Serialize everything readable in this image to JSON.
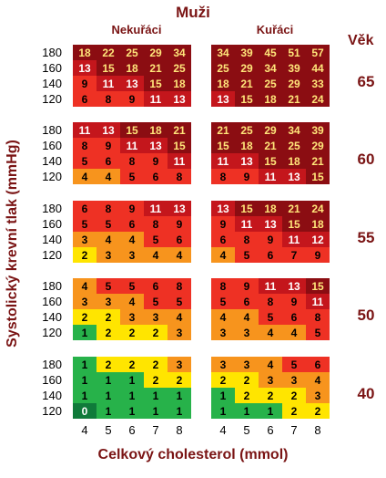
{
  "header": {
    "title": "Muži",
    "nonsmokers": "Nekuřáci",
    "smokers": "Kuřáci",
    "age_label": "Věk"
  },
  "axes": {
    "ylabel": "Systolický krevní tlak (mmHg)",
    "xlabel": "Celkový cholesterol (mmol)",
    "bp_ticks": [
      "180",
      "160",
      "140",
      "120"
    ],
    "chol_ticks": [
      "4",
      "5",
      "6",
      "7",
      "8"
    ]
  },
  "palette": [
    "#0f7a3a",
    "#27b24a",
    "#ffe500",
    "#f7941d",
    "#ee3124",
    "#c4161c",
    "#8b0d12"
  ],
  "panels": [
    {
      "age": "65",
      "nonsmokers": [
        [
          18,
          22,
          25,
          29,
          34
        ],
        [
          13,
          15,
          18,
          21,
          25
        ],
        [
          9,
          11,
          13,
          15,
          18
        ],
        [
          6,
          8,
          9,
          11,
          13
        ]
      ],
      "smokers": [
        [
          34,
          39,
          45,
          51,
          57
        ],
        [
          25,
          29,
          34,
          39,
          44
        ],
        [
          18,
          21,
          25,
          29,
          33
        ],
        [
          13,
          15,
          18,
          21,
          24
        ]
      ]
    },
    {
      "age": "60",
      "nonsmokers": [
        [
          11,
          13,
          15,
          18,
          21
        ],
        [
          8,
          9,
          11,
          13,
          15
        ],
        [
          5,
          6,
          8,
          9,
          11
        ],
        [
          4,
          4,
          5,
          6,
          8
        ]
      ],
      "smokers": [
        [
          21,
          25,
          29,
          34,
          39
        ],
        [
          15,
          18,
          21,
          25,
          29
        ],
        [
          11,
          13,
          15,
          18,
          21
        ],
        [
          8,
          9,
          11,
          13,
          15
        ]
      ]
    },
    {
      "age": "55",
      "nonsmokers": [
        [
          6,
          8,
          9,
          11,
          13
        ],
        [
          5,
          5,
          6,
          8,
          9
        ],
        [
          3,
          4,
          4,
          5,
          6
        ],
        [
          2,
          3,
          3,
          4,
          4
        ]
      ],
      "smokers": [
        [
          13,
          15,
          18,
          21,
          24
        ],
        [
          9,
          11,
          13,
          15,
          18
        ],
        [
          6,
          8,
          9,
          11,
          12
        ],
        [
          4,
          5,
          6,
          7,
          9
        ]
      ]
    },
    {
      "age": "50",
      "nonsmokers": [
        [
          4,
          5,
          5,
          6,
          8
        ],
        [
          3,
          3,
          4,
          5,
          5
        ],
        [
          2,
          2,
          3,
          3,
          4
        ],
        [
          1,
          2,
          2,
          2,
          3
        ]
      ],
      "smokers": [
        [
          8,
          9,
          11,
          13,
          15
        ],
        [
          5,
          6,
          8,
          9,
          11
        ],
        [
          4,
          4,
          5,
          6,
          8
        ],
        [
          3,
          3,
          4,
          4,
          5
        ]
      ]
    },
    {
      "age": "40",
      "nonsmokers": [
        [
          1,
          2,
          2,
          2,
          3
        ],
        [
          1,
          1,
          1,
          2,
          2
        ],
        [
          1,
          1,
          1,
          1,
          1
        ],
        [
          0,
          1,
          1,
          1,
          1
        ]
      ],
      "smokers": [
        [
          3,
          3,
          4,
          5,
          6
        ],
        [
          2,
          2,
          3,
          3,
          4
        ],
        [
          1,
          2,
          2,
          2,
          3
        ],
        [
          1,
          1,
          1,
          2,
          2
        ]
      ]
    }
  ]
}
